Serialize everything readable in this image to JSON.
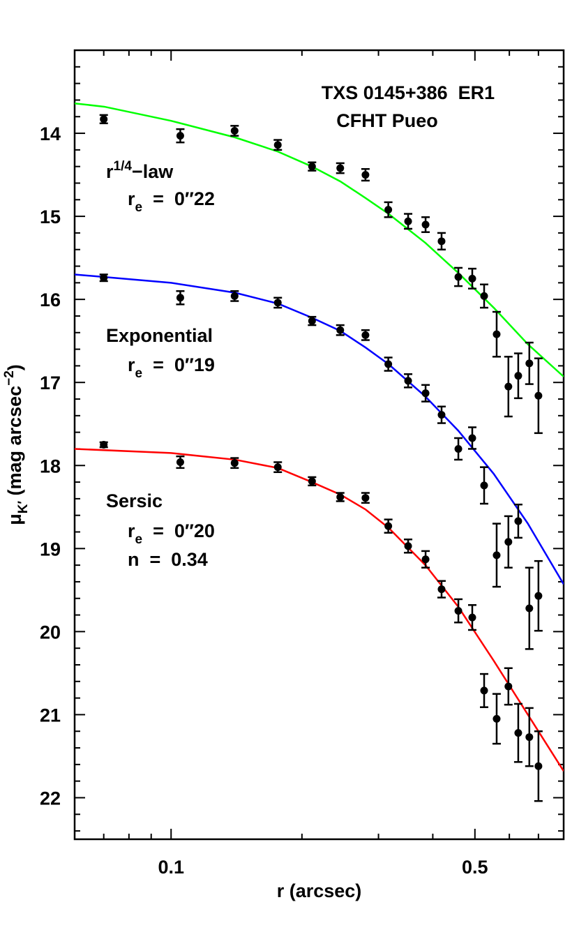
{
  "chart_data": {
    "type": "scatter",
    "xlabel": "r (arcsec)",
    "ylabel": {
      "base": "μ",
      "sub": "K′",
      "after": " (mag arcsec",
      "power": "−2",
      "end": ")"
    },
    "xlog": true,
    "xlim": [
      0.06,
      0.8
    ],
    "ylim": [
      13,
      22.5
    ],
    "y_inverted": true,
    "xticks": [
      0.1,
      0.5
    ],
    "xminorticks": [
      0.06,
      0.07,
      0.08,
      0.09,
      0.2,
      0.3,
      0.4,
      0.6,
      0.7,
      0.8
    ],
    "yticks": [
      14,
      15,
      16,
      17,
      18,
      19,
      20,
      21,
      22
    ],
    "yminorticks": [
      13.2,
      13.4,
      13.6,
      13.8,
      14.2,
      14.4,
      14.6,
      14.8,
      15.2,
      15.4,
      15.6,
      15.8,
      16.2,
      16.4,
      16.6,
      16.8,
      17.2,
      17.4,
      17.6,
      17.8,
      18.2,
      18.4,
      18.6,
      18.8,
      19.2,
      19.4,
      19.6,
      19.8,
      20.2,
      20.4,
      20.6,
      20.8,
      21.2,
      21.4,
      21.6,
      21.8,
      22.2,
      22.4
    ],
    "x": [
      0.07,
      0.105,
      0.14,
      0.176,
      0.211,
      0.245,
      0.28,
      0.316,
      0.351,
      0.385,
      0.419,
      0.458,
      0.493,
      0.525,
      0.561,
      0.597,
      0.629,
      0.667,
      0.7
    ],
    "series": [
      {
        "color": "#000000",
        "values": [
          13.83,
          14.03,
          13.97,
          14.14,
          14.4,
          14.42,
          14.5,
          14.92,
          15.06,
          15.1,
          15.3,
          15.73,
          15.75,
          15.96,
          16.42,
          17.05,
          16.92,
          16.77,
          17.16
        ],
        "errors": [
          0.05,
          0.08,
          0.06,
          0.06,
          0.05,
          0.06,
          0.07,
          0.09,
          0.09,
          0.09,
          0.1,
          0.11,
          0.12,
          0.14,
          0.27,
          0.36,
          0.27,
          0.25,
          0.45
        ]
      },
      {
        "color": "#000000",
        "values": [
          15.74,
          15.98,
          15.96,
          16.04,
          16.26,
          16.37,
          16.43,
          16.78,
          16.98,
          17.13,
          17.39,
          17.8,
          17.67,
          18.24,
          19.08,
          18.92,
          18.67,
          19.72,
          19.57
        ],
        "errors": [
          0.04,
          0.08,
          0.06,
          0.06,
          0.05,
          0.06,
          0.06,
          0.08,
          0.08,
          0.1,
          0.1,
          0.13,
          0.13,
          0.22,
          0.38,
          0.31,
          0.2,
          0.49,
          0.42
        ]
      },
      {
        "color": "#000000",
        "values": [
          17.75,
          17.96,
          17.97,
          18.02,
          18.19,
          18.38,
          18.39,
          18.73,
          18.97,
          19.13,
          19.49,
          19.75,
          19.83,
          20.71,
          21.05,
          20.66,
          21.22,
          21.27,
          21.62
        ],
        "errors": [
          0.03,
          0.07,
          0.06,
          0.06,
          0.05,
          0.05,
          0.06,
          0.08,
          0.08,
          0.1,
          0.1,
          0.14,
          0.15,
          0.2,
          0.3,
          0.22,
          0.35,
          0.35,
          0.42
        ]
      }
    ],
    "models": [
      {
        "color": "#00ff00",
        "x": [
          0.06,
          0.0702,
          0.1,
          0.1404,
          0.176,
          0.2108,
          0.2452,
          0.2802,
          0.3164,
          0.3847,
          0.4576,
          0.5523,
          0.6619,
          0.8
        ],
        "values": [
          13.64,
          13.68,
          13.85,
          14.05,
          14.22,
          14.4,
          14.58,
          14.78,
          14.97,
          15.32,
          15.68,
          16.1,
          16.54,
          16.93
        ]
      },
      {
        "color": "#0000ff",
        "x": [
          0.06,
          0.1,
          0.1404,
          0.176,
          0.2108,
          0.2452,
          0.2802,
          0.3164,
          0.3847,
          0.4576,
          0.5523,
          0.6619,
          0.8
        ],
        "values": [
          15.7,
          15.8,
          15.92,
          16.05,
          16.22,
          16.38,
          16.58,
          16.78,
          17.17,
          17.58,
          18.1,
          18.7,
          19.43
        ]
      },
      {
        "color": "#ff0000",
        "x": [
          0.06,
          0.1,
          0.1404,
          0.176,
          0.2108,
          0.2452,
          0.2802,
          0.3164,
          0.3847,
          0.4576,
          0.5523,
          0.6619,
          0.8
        ],
        "values": [
          17.8,
          17.85,
          17.93,
          18.03,
          18.2,
          18.35,
          18.53,
          18.75,
          19.2,
          19.7,
          20.35,
          21.0,
          21.68
        ]
      }
    ],
    "annotations": [
      {
        "base": "TXS 0145+386  ER1"
      },
      {
        "base": "CFHT Pueo"
      },
      {
        "base": "r",
        "sup": "1/4",
        "after": "−law"
      },
      {
        "base": "r",
        "sub": "e",
        "after": "  =  0″22"
      },
      {
        "base": "Exponential"
      },
      {
        "base": "r",
        "sub": "e",
        "after": "  =  0″19"
      },
      {
        "base": "Sersic"
      },
      {
        "base": "r",
        "sub": "e",
        "after": "  =  0″20"
      },
      {
        "base": "n  =  0.34"
      }
    ]
  }
}
